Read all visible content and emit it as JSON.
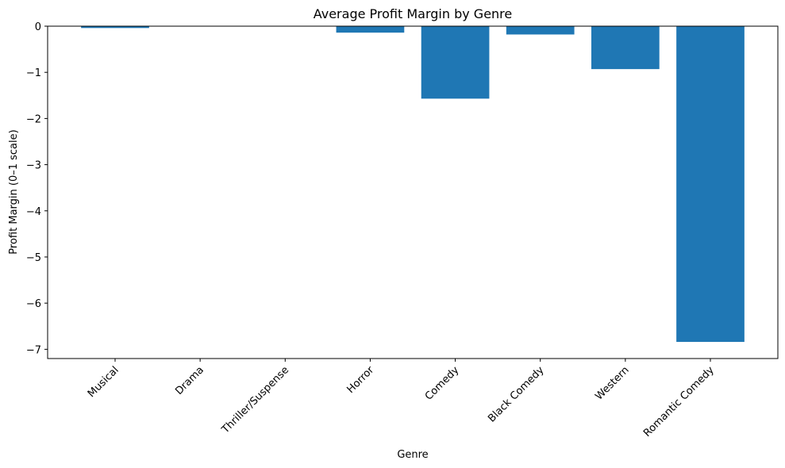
{
  "chart_data": {
    "type": "bar",
    "title": "Average Profit Margin by Genre",
    "xlabel": "Genre",
    "ylabel": "Profit Margin (0–1 scale)",
    "categories": [
      "Musical",
      "Drama",
      "Thriller/Suspense",
      "Horror",
      "Comedy",
      "Black Comedy",
      "Western",
      "Romantic Comedy"
    ],
    "values": [
      -0.04,
      0.0,
      0.0,
      -0.14,
      -1.57,
      -0.18,
      -0.93,
      -6.84
    ],
    "ylim": [
      -7.2,
      0
    ],
    "yticks": [
      0,
      -1,
      -2,
      -3,
      -4,
      -5,
      -6,
      -7
    ],
    "ytick_labels": [
      "0",
      "−1",
      "−2",
      "−3",
      "−4",
      "−5",
      "−6",
      "−7"
    ],
    "bar_color": "#1f77b4",
    "grid": false,
    "legend": "none"
  }
}
